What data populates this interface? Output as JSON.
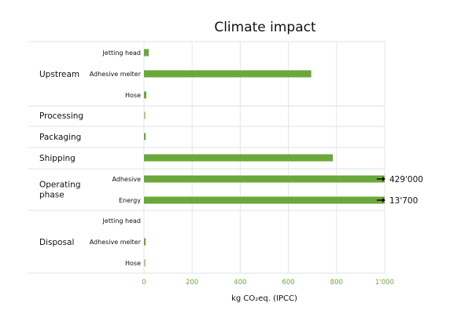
{
  "chart_data": {
    "type": "bar",
    "orientation": "horizontal",
    "title": "Climate impact",
    "xlabel": "kg CO₂eq. (IPCC)",
    "xlim": [
      0,
      1000
    ],
    "xticks": [
      "0",
      "200",
      "400",
      "600",
      "800",
      "1'000"
    ],
    "grid": true,
    "groups": [
      {
        "name": "Upstream",
        "items": [
          {
            "label": "Jetting head",
            "value": 20
          },
          {
            "label": "Adhesive melter",
            "value": 695
          },
          {
            "label": "Hose",
            "value": 10
          }
        ]
      },
      {
        "name": "Processing",
        "items": [
          {
            "label": "",
            "value": 4
          }
        ]
      },
      {
        "name": "Packaging",
        "items": [
          {
            "label": "",
            "value": 7
          }
        ]
      },
      {
        "name": "Shipping",
        "items": [
          {
            "label": "",
            "value": 785
          }
        ]
      },
      {
        "name": "Operating phase",
        "items": [
          {
            "label": "Adhesive",
            "value": 429000,
            "clipped": true,
            "value_label": "429'000"
          },
          {
            "label": "Energy",
            "value": 13700,
            "clipped": true,
            "value_label": "13'700"
          }
        ]
      },
      {
        "name": "Disposal",
        "items": [
          {
            "label": "Jetting head",
            "value": 0
          },
          {
            "label": "Adhesive melter",
            "value": 7
          },
          {
            "label": "Hose",
            "value": 3
          }
        ]
      }
    ],
    "colors": {
      "bar": "#6aa83a",
      "bar_light": "#a8cf8a",
      "tick": "#6aa83a"
    }
  }
}
